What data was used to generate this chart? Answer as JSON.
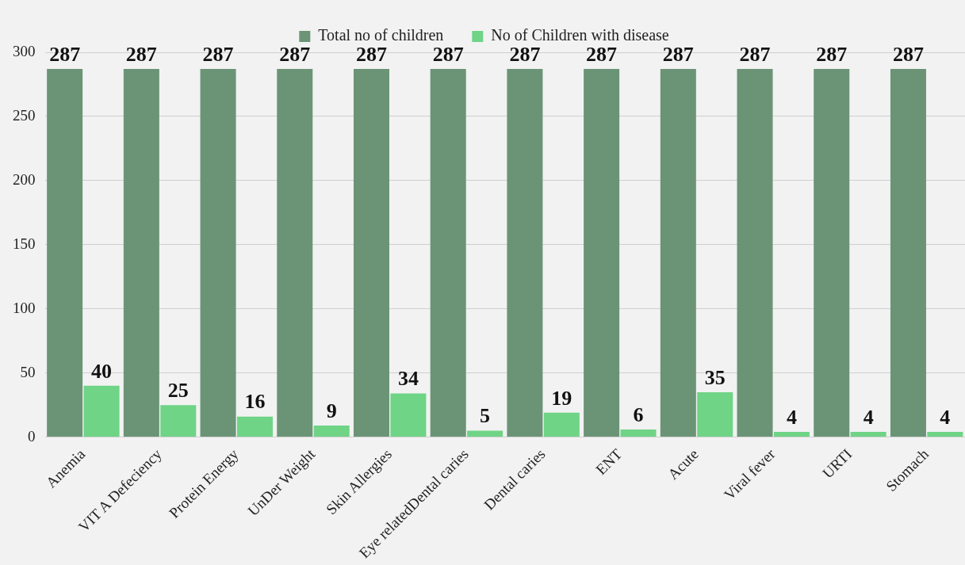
{
  "chart_data": {
    "type": "bar",
    "categories": [
      "Anemia",
      "VIT A Defeciency",
      "Protein Energy",
      "UnDer Weight",
      "Skin Allergies",
      "Eye relatedDental caries",
      "Dental caries",
      "ENT",
      "Acute",
      "Viral fever",
      "URTI",
      "Stomach"
    ],
    "series": [
      {
        "name": "Total no of children",
        "color": "#6b9476",
        "values": [
          287,
          287,
          287,
          287,
          287,
          287,
          287,
          287,
          287,
          287,
          287,
          287
        ]
      },
      {
        "name": "No of Children with disease",
        "color": "#6fd486",
        "values": [
          40,
          25,
          16,
          9,
          34,
          5,
          19,
          6,
          35,
          4,
          4,
          4
        ]
      }
    ],
    "ylim": [
      0,
      300
    ],
    "yticks": [
      0,
      50,
      100,
      150,
      200,
      250,
      300
    ],
    "grid": "y",
    "legend": "top",
    "data_labels": true
  }
}
